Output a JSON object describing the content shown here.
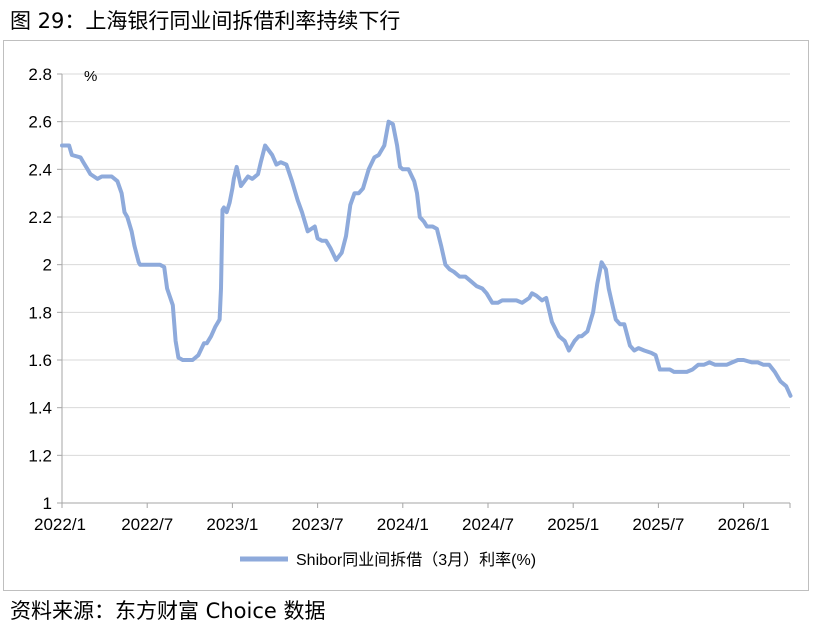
{
  "figure_title": "图 29：上海银行同业间拆借利率持续下行",
  "source": "资料来源：东方财富 Choice 数据",
  "chart_data": {
    "type": "line",
    "unit_label": "%",
    "ylim": [
      1,
      2.8
    ],
    "yticks": [
      "1",
      "1.2",
      "1.4",
      "1.6",
      "1.8",
      "2",
      "2.2",
      "2.4",
      "2.6",
      "2.8"
    ],
    "xticks": [
      "2022/1",
      "2022/7",
      "2023/1",
      "2023/7",
      "2024/1",
      "2024/7",
      "2025/1",
      "2025/7",
      "2026/1"
    ],
    "xtick_months": [
      0,
      6,
      12,
      18,
      24,
      30,
      36,
      42,
      48
    ],
    "x_max_month": 51.3,
    "grid": "horizontal",
    "legend_position": "bottom",
    "line_color": "#8eaadb",
    "series": [
      {
        "name": "Shibor同业间拆借（3月）利率(%)",
        "x": [
          0,
          0.5,
          0.7,
          1.3,
          1.5,
          1.8,
          2.0,
          2.5,
          2.8,
          3.2,
          3.5,
          3.9,
          4.2,
          4.4,
          4.6,
          4.9,
          5.1,
          5.4,
          5.5,
          5.8,
          6.0,
          6.2,
          6.9,
          7.2,
          7.4,
          7.8,
          8.0,
          8.2,
          8.5,
          8.7,
          9.2,
          9.6,
          10.0,
          10.2,
          10.5,
          10.8,
          11.1,
          11.2,
          11.3,
          11.4,
          11.6,
          11.8,
          12.0,
          12.1,
          12.3,
          12.6,
          13.1,
          13.4,
          13.8,
          14.0,
          14.3,
          14.8,
          15.1,
          15.4,
          15.8,
          16.2,
          16.6,
          16.9,
          17.3,
          17.8,
          18.0,
          18.3,
          18.6,
          18.9,
          19.3,
          19.7,
          20.0,
          20.3,
          20.6,
          20.9,
          21.2,
          21.6,
          22.0,
          22.3,
          22.7,
          23.0,
          23.3,
          23.6,
          23.8,
          24.0,
          24.4,
          24.8,
          25.0,
          25.2,
          25.5,
          25.7,
          26.1,
          26.4,
          26.7,
          27.0,
          27.3,
          27.6,
          28.0,
          28.4,
          28.8,
          29.2,
          29.6,
          29.9,
          30.3,
          30.7,
          31.0,
          31.5,
          32.0,
          32.4,
          32.9,
          33.1,
          33.4,
          33.8,
          34.1,
          34.5,
          35.0,
          35.4,
          35.7,
          36.1,
          36.4,
          36.6,
          37.0,
          37.4,
          37.7,
          38.0,
          38.3,
          38.5,
          38.8,
          39.0,
          39.3,
          39.6,
          40.0,
          40.3,
          40.6,
          41.0,
          41.5,
          41.8,
          42.1,
          42.4,
          42.8,
          43.1,
          43.6,
          44.0,
          44.4,
          44.8,
          45.2,
          45.6,
          46.0,
          46.4,
          46.8,
          47.2,
          47.6,
          48.0,
          48.6,
          49.0,
          49.4,
          49.8,
          50.2,
          50.6,
          51.0,
          51.3
        ],
        "y": [
          2.5,
          2.5,
          2.46,
          2.45,
          2.43,
          2.4,
          2.38,
          2.36,
          2.37,
          2.37,
          2.37,
          2.35,
          2.3,
          2.22,
          2.2,
          2.14,
          2.08,
          2.01,
          2.0,
          2.0,
          2.0,
          2.0,
          2.0,
          1.99,
          1.9,
          1.83,
          1.68,
          1.61,
          1.6,
          1.6,
          1.6,
          1.62,
          1.67,
          1.67,
          1.7,
          1.74,
          1.77,
          1.9,
          2.23,
          2.24,
          2.22,
          2.26,
          2.32,
          2.36,
          2.41,
          2.33,
          2.37,
          2.36,
          2.38,
          2.43,
          2.5,
          2.46,
          2.42,
          2.43,
          2.42,
          2.35,
          2.27,
          2.22,
          2.14,
          2.16,
          2.11,
          2.1,
          2.1,
          2.07,
          2.02,
          2.05,
          2.12,
          2.25,
          2.3,
          2.3,
          2.32,
          2.4,
          2.45,
          2.46,
          2.5,
          2.6,
          2.59,
          2.5,
          2.41,
          2.4,
          2.4,
          2.35,
          2.3,
          2.2,
          2.18,
          2.16,
          2.16,
          2.15,
          2.08,
          2.0,
          1.98,
          1.97,
          1.95,
          1.95,
          1.93,
          1.91,
          1.9,
          1.88,
          1.84,
          1.84,
          1.85,
          1.85,
          1.85,
          1.84,
          1.86,
          1.88,
          1.87,
          1.85,
          1.86,
          1.76,
          1.7,
          1.68,
          1.64,
          1.68,
          1.7,
          1.7,
          1.72,
          1.8,
          1.92,
          2.01,
          1.98,
          1.9,
          1.82,
          1.77,
          1.75,
          1.75,
          1.66,
          1.64,
          1.65,
          1.64,
          1.63,
          1.62,
          1.56,
          1.56,
          1.56,
          1.55,
          1.55,
          1.55,
          1.56,
          1.58,
          1.58,
          1.59,
          1.58,
          1.58,
          1.58,
          1.59,
          1.6,
          1.6,
          1.59,
          1.59,
          1.58,
          1.58,
          1.55,
          1.51,
          1.49,
          1.45
        ]
      }
    ]
  }
}
